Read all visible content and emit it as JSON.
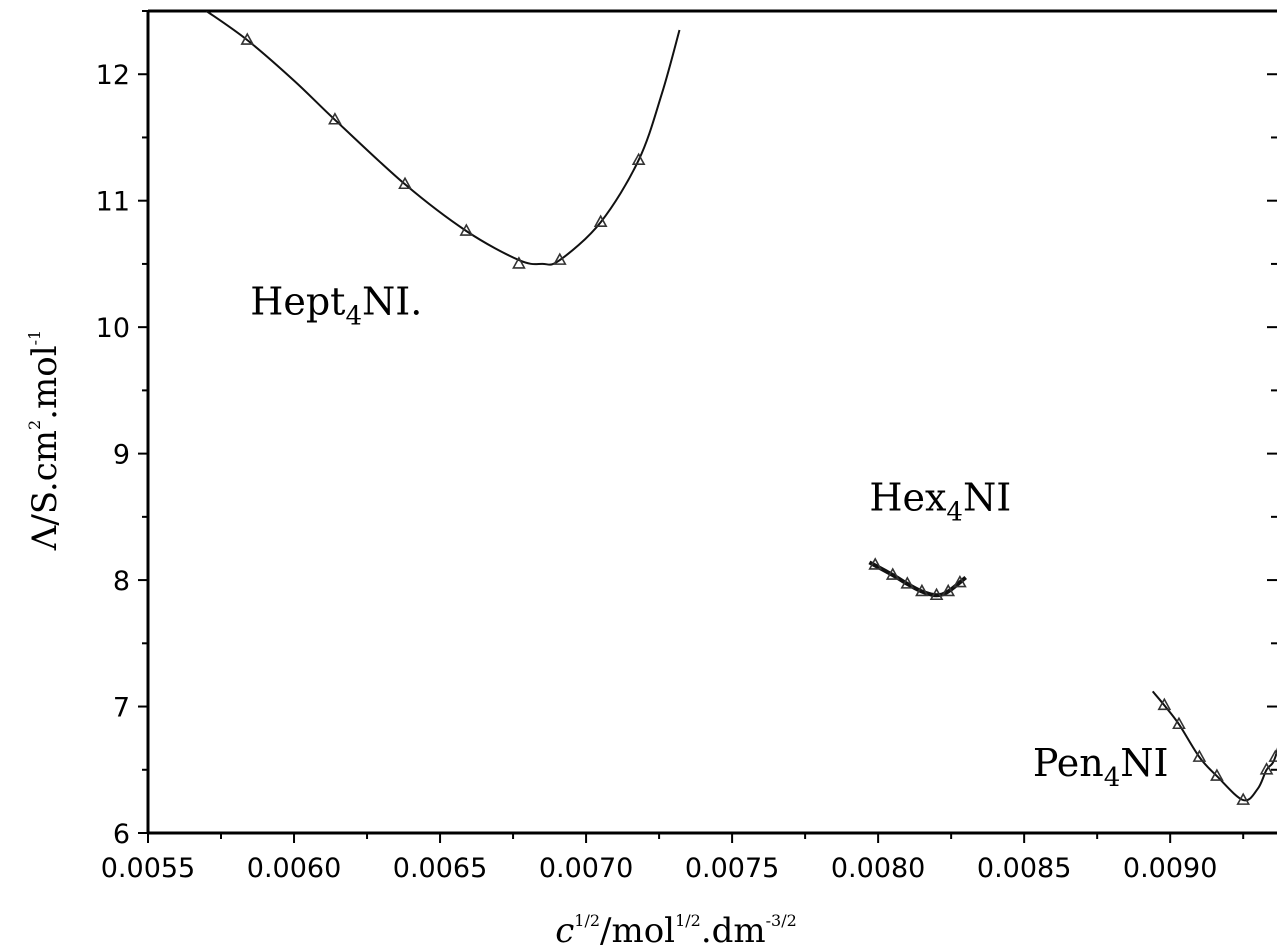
{
  "chart_data": {
    "type": "line",
    "xlabel": {
      "base": "c",
      "sup1": "1/2",
      "mid": "/mol",
      "sup2": "1/2",
      "tail": ".dm",
      "sup3": "-3/2"
    },
    "ylabel": {
      "base": "Λ/S.cm",
      "sup1": "2",
      "mid": ".mol",
      "sup2": "-1"
    },
    "xlim": [
      0.0055,
      0.0094
    ],
    "ylim": [
      6,
      12.5
    ],
    "x_ticks": [
      "0.0055",
      "0.0060",
      "0.0065",
      "0.0070",
      "0.0075",
      "0.0080",
      "0.0085",
      "0.0090"
    ],
    "x_tick_values": [
      0.0055,
      0.006,
      0.0065,
      0.007,
      0.0075,
      0.008,
      0.0085,
      0.009
    ],
    "y_ticks": [
      "6",
      "7",
      "8",
      "9",
      "10",
      "11",
      "12"
    ],
    "y_tick_values": [
      6,
      7,
      8,
      9,
      10,
      11,
      12
    ],
    "grid": false,
    "series": [
      {
        "name": "Hept4NI.",
        "label_base": "Hept",
        "label_sub": "4",
        "label_tail": "NI.",
        "label_pos": [
          0.00585,
          10.1
        ],
        "points": [
          [
            0.00584,
            12.27
          ],
          [
            0.00614,
            11.64
          ],
          [
            0.00638,
            11.13
          ],
          [
            0.00659,
            10.76
          ],
          [
            0.00677,
            10.5
          ],
          [
            0.00691,
            10.53
          ],
          [
            0.00705,
            10.83
          ],
          [
            0.00718,
            11.32
          ]
        ],
        "curve": [
          [
            0.0057,
            12.5
          ],
          [
            0.00584,
            12.27
          ],
          [
            0.006,
            11.95
          ],
          [
            0.00614,
            11.64
          ],
          [
            0.00638,
            11.13
          ],
          [
            0.00659,
            10.76
          ],
          [
            0.00677,
            10.53
          ],
          [
            0.00685,
            10.5
          ],
          [
            0.00691,
            10.53
          ],
          [
            0.00705,
            10.83
          ],
          [
            0.00718,
            11.32
          ],
          [
            0.00726,
            11.85
          ],
          [
            0.00732,
            12.35
          ]
        ]
      },
      {
        "name": "Hex4NI",
        "label_base": "Hex",
        "label_sub": "4",
        "label_tail": "NI",
        "label_pos": [
          0.00797,
          8.55
        ],
        "points": [
          [
            0.00799,
            8.12
          ],
          [
            0.00805,
            8.04
          ],
          [
            0.0081,
            7.97
          ],
          [
            0.00815,
            7.91
          ],
          [
            0.0082,
            7.88
          ],
          [
            0.00824,
            7.91
          ],
          [
            0.00828,
            7.98
          ]
        ],
        "curve": [
          [
            0.00797,
            8.14
          ],
          [
            0.00805,
            8.04
          ],
          [
            0.0081,
            7.97
          ],
          [
            0.00815,
            7.91
          ],
          [
            0.0082,
            7.88
          ],
          [
            0.00824,
            7.91
          ],
          [
            0.0083,
            8.02
          ]
        ]
      },
      {
        "name": "Pen4NI",
        "label_base": "Pen",
        "label_sub": "4",
        "label_tail": "NI",
        "label_pos": [
          0.00853,
          6.45
        ],
        "points": [
          [
            0.00898,
            7.01
          ],
          [
            0.00903,
            6.86
          ],
          [
            0.0091,
            6.6
          ],
          [
            0.00916,
            6.45
          ],
          [
            0.00925,
            6.26
          ],
          [
            0.00933,
            6.5
          ],
          [
            0.00936,
            6.6
          ]
        ],
        "curve": [
          [
            0.00894,
            7.12
          ],
          [
            0.00898,
            7.01
          ],
          [
            0.00903,
            6.86
          ],
          [
            0.0091,
            6.6
          ],
          [
            0.00916,
            6.45
          ],
          [
            0.00925,
            6.26
          ],
          [
            0.0093,
            6.35
          ],
          [
            0.00933,
            6.5
          ],
          [
            0.00936,
            6.6
          ],
          [
            0.0094,
            6.98
          ]
        ]
      }
    ]
  }
}
